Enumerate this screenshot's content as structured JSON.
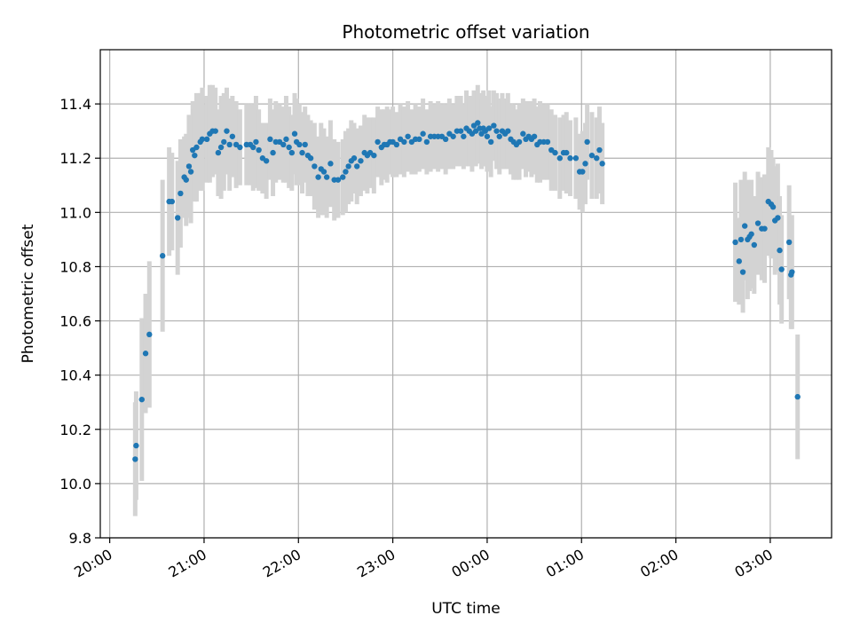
{
  "chart_data": {
    "type": "scatter",
    "title": "Photometric offset variation",
    "xlabel": "UTC time",
    "ylabel": "Photometric offset",
    "x_unit": "hours after 20:00 UTC",
    "xlim": [
      -0.1,
      7.65
    ],
    "ylim": [
      9.8,
      11.6
    ],
    "x_ticks": [
      {
        "value": 0,
        "label": "20:00"
      },
      {
        "value": 1,
        "label": "21:00"
      },
      {
        "value": 2,
        "label": "22:00"
      },
      {
        "value": 3,
        "label": "23:00"
      },
      {
        "value": 4,
        "label": "00:00"
      },
      {
        "value": 5,
        "label": "01:00"
      },
      {
        "value": 6,
        "label": "02:00"
      },
      {
        "value": 7,
        "label": "03:00"
      }
    ],
    "y_ticks": [
      {
        "value": 9.8,
        "label": "9.8"
      },
      {
        "value": 10.0,
        "label": "10.0"
      },
      {
        "value": 10.2,
        "label": "10.2"
      },
      {
        "value": 10.4,
        "label": "10.4"
      },
      {
        "value": 10.6,
        "label": "10.6"
      },
      {
        "value": 10.8,
        "label": "10.8"
      },
      {
        "value": 11.0,
        "label": "11.0"
      },
      {
        "value": 11.2,
        "label": "11.2"
      },
      {
        "value": 11.4,
        "label": "11.4"
      }
    ],
    "grid": true,
    "point_color": "#1f77b4",
    "errorbar_color": "#d3d3d3",
    "series": [
      {
        "points": [
          [
            0.27,
            10.09,
            0.21
          ],
          [
            0.28,
            10.14,
            0.2
          ],
          [
            0.34,
            10.31,
            0.3
          ],
          [
            0.38,
            10.48,
            0.22
          ],
          [
            0.42,
            10.55,
            0.27
          ],
          [
            0.56,
            10.84,
            0.28
          ],
          [
            0.63,
            11.04,
            0.2
          ],
          [
            0.66,
            11.04,
            0.18
          ],
          [
            0.72,
            10.98,
            0.21
          ],
          [
            0.75,
            11.07,
            0.2
          ],
          [
            0.79,
            11.13,
            0.15
          ],
          [
            0.81,
            11.12,
            0.17
          ],
          [
            0.84,
            11.17,
            0.19
          ],
          [
            0.86,
            11.15,
            0.19
          ],
          [
            0.88,
            11.23,
            0.18
          ],
          [
            0.9,
            11.21,
            0.17
          ],
          [
            0.92,
            11.24,
            0.2
          ],
          [
            0.96,
            11.26,
            0.18
          ],
          [
            0.98,
            11.27,
            0.19
          ],
          [
            1.03,
            11.27,
            0.16
          ],
          [
            1.06,
            11.29,
            0.18
          ],
          [
            1.09,
            11.3,
            0.17
          ],
          [
            1.12,
            11.3,
            0.16
          ],
          [
            1.15,
            11.22,
            0.16
          ],
          [
            1.18,
            11.24,
            0.19
          ],
          [
            1.21,
            11.26,
            0.18
          ],
          [
            1.24,
            11.3,
            0.16
          ],
          [
            1.27,
            11.25,
            0.17
          ],
          [
            1.3,
            11.28,
            0.15
          ],
          [
            1.34,
            11.25,
            0.16
          ],
          [
            1.38,
            11.24,
            0.14
          ],
          [
            1.45,
            11.25,
            0.15
          ],
          [
            1.49,
            11.25,
            0.15
          ],
          [
            1.52,
            11.24,
            0.16
          ],
          [
            1.55,
            11.26,
            0.17
          ],
          [
            1.58,
            11.23,
            0.15
          ],
          [
            1.62,
            11.2,
            0.13
          ],
          [
            1.66,
            11.19,
            0.14
          ],
          [
            1.7,
            11.27,
            0.15
          ],
          [
            1.73,
            11.22,
            0.16
          ],
          [
            1.76,
            11.26,
            0.15
          ],
          [
            1.8,
            11.26,
            0.14
          ],
          [
            1.84,
            11.25,
            0.14
          ],
          [
            1.87,
            11.27,
            0.16
          ],
          [
            1.9,
            11.24,
            0.15
          ],
          [
            1.93,
            11.22,
            0.14
          ],
          [
            1.96,
            11.29,
            0.15
          ],
          [
            1.98,
            11.26,
            0.16
          ],
          [
            2.01,
            11.25,
            0.15
          ],
          [
            2.04,
            11.22,
            0.15
          ],
          [
            2.07,
            11.25,
            0.14
          ],
          [
            2.1,
            11.21,
            0.15
          ],
          [
            2.13,
            11.2,
            0.14
          ],
          [
            2.17,
            11.17,
            0.16
          ],
          [
            2.21,
            11.13,
            0.15
          ],
          [
            2.24,
            11.16,
            0.17
          ],
          [
            2.27,
            11.15,
            0.16
          ],
          [
            2.3,
            11.13,
            0.15
          ],
          [
            2.34,
            11.18,
            0.16
          ],
          [
            2.38,
            11.12,
            0.15
          ],
          [
            2.42,
            11.12,
            0.14
          ],
          [
            2.47,
            11.13,
            0.14
          ],
          [
            2.5,
            11.15,
            0.15
          ],
          [
            2.53,
            11.17,
            0.14
          ],
          [
            2.56,
            11.19,
            0.15
          ],
          [
            2.59,
            11.2,
            0.13
          ],
          [
            2.62,
            11.17,
            0.14
          ],
          [
            2.66,
            11.19,
            0.13
          ],
          [
            2.7,
            11.22,
            0.14
          ],
          [
            2.73,
            11.21,
            0.14
          ],
          [
            2.76,
            11.22,
            0.13
          ],
          [
            2.8,
            11.21,
            0.14
          ],
          [
            2.84,
            11.26,
            0.13
          ],
          [
            2.88,
            11.24,
            0.14
          ],
          [
            2.91,
            11.25,
            0.13
          ],
          [
            2.94,
            11.25,
            0.14
          ],
          [
            2.97,
            11.26,
            0.12
          ],
          [
            3.0,
            11.26,
            0.13
          ],
          [
            3.04,
            11.25,
            0.12
          ],
          [
            3.08,
            11.27,
            0.13
          ],
          [
            3.12,
            11.26,
            0.13
          ],
          [
            3.16,
            11.28,
            0.13
          ],
          [
            3.2,
            11.26,
            0.12
          ],
          [
            3.24,
            11.27,
            0.13
          ],
          [
            3.28,
            11.27,
            0.12
          ],
          [
            3.32,
            11.29,
            0.13
          ],
          [
            3.36,
            11.26,
            0.12
          ],
          [
            3.4,
            11.28,
            0.13
          ],
          [
            3.44,
            11.28,
            0.12
          ],
          [
            3.48,
            11.28,
            0.13
          ],
          [
            3.52,
            11.28,
            0.12
          ],
          [
            3.56,
            11.27,
            0.13
          ],
          [
            3.6,
            11.29,
            0.13
          ],
          [
            3.64,
            11.28,
            0.12
          ],
          [
            3.68,
            11.3,
            0.13
          ],
          [
            3.72,
            11.3,
            0.13
          ],
          [
            3.75,
            11.28,
            0.12
          ],
          [
            3.78,
            11.31,
            0.14
          ],
          [
            3.81,
            11.3,
            0.13
          ],
          [
            3.84,
            11.29,
            0.14
          ],
          [
            3.86,
            11.32,
            0.13
          ],
          [
            3.88,
            11.3,
            0.13
          ],
          [
            3.9,
            11.33,
            0.14
          ],
          [
            3.92,
            11.31,
            0.13
          ],
          [
            3.94,
            11.29,
            0.13
          ],
          [
            3.96,
            11.31,
            0.14
          ],
          [
            3.98,
            11.3,
            0.13
          ],
          [
            4.0,
            11.28,
            0.13
          ],
          [
            4.02,
            11.31,
            0.14
          ],
          [
            4.04,
            11.26,
            0.13
          ],
          [
            4.07,
            11.32,
            0.13
          ],
          [
            4.1,
            11.3,
            0.14
          ],
          [
            4.13,
            11.28,
            0.14
          ],
          [
            4.16,
            11.3,
            0.14
          ],
          [
            4.19,
            11.29,
            0.13
          ],
          [
            4.22,
            11.3,
            0.14
          ],
          [
            4.25,
            11.27,
            0.13
          ],
          [
            4.28,
            11.26,
            0.14
          ],
          [
            4.31,
            11.25,
            0.13
          ],
          [
            4.34,
            11.26,
            0.14
          ],
          [
            4.38,
            11.29,
            0.13
          ],
          [
            4.41,
            11.27,
            0.14
          ],
          [
            4.44,
            11.28,
            0.13
          ],
          [
            4.47,
            11.27,
            0.14
          ],
          [
            4.5,
            11.28,
            0.14
          ],
          [
            4.53,
            11.25,
            0.14
          ],
          [
            4.56,
            11.26,
            0.15
          ],
          [
            4.6,
            11.26,
            0.14
          ],
          [
            4.64,
            11.26,
            0.14
          ],
          [
            4.68,
            11.23,
            0.15
          ],
          [
            4.72,
            11.22,
            0.14
          ],
          [
            4.77,
            11.2,
            0.15
          ],
          [
            4.81,
            11.22,
            0.14
          ],
          [
            4.84,
            11.22,
            0.15
          ],
          [
            4.88,
            11.2,
            0.14
          ],
          [
            4.94,
            11.2,
            0.15
          ],
          [
            4.98,
            11.15,
            0.14
          ],
          [
            5.01,
            11.15,
            0.15
          ],
          [
            5.04,
            11.18,
            0.15
          ],
          [
            5.06,
            11.26,
            0.14
          ],
          [
            5.11,
            11.21,
            0.16
          ],
          [
            5.16,
            11.2,
            0.15
          ],
          [
            5.19,
            11.23,
            0.16
          ],
          [
            5.22,
            11.18,
            0.15
          ],
          [
            6.63,
            10.89,
            0.22
          ],
          [
            6.67,
            10.82,
            0.16
          ],
          [
            6.69,
            10.9,
            0.22
          ],
          [
            6.71,
            10.78,
            0.15
          ],
          [
            6.73,
            10.95,
            0.2
          ],
          [
            6.76,
            10.9,
            0.22
          ],
          [
            6.78,
            10.91,
            0.2
          ],
          [
            6.8,
            10.92,
            0.2
          ],
          [
            6.83,
            10.88,
            0.18
          ],
          [
            6.87,
            10.96,
            0.19
          ],
          [
            6.91,
            10.94,
            0.19
          ],
          [
            6.94,
            10.94,
            0.2
          ],
          [
            6.98,
            11.04,
            0.2
          ],
          [
            7.01,
            11.03,
            0.2
          ],
          [
            7.03,
            11.02,
            0.18
          ],
          [
            7.05,
            10.97,
            0.2
          ],
          [
            7.08,
            10.98,
            0.2
          ],
          [
            7.1,
            10.86,
            0.2
          ],
          [
            7.12,
            10.79,
            0.2
          ],
          [
            7.2,
            10.89,
            0.21
          ],
          [
            7.22,
            10.77,
            0.2
          ],
          [
            7.23,
            10.78,
            0.21
          ],
          [
            7.29,
            10.32,
            0.23
          ]
        ]
      }
    ]
  }
}
